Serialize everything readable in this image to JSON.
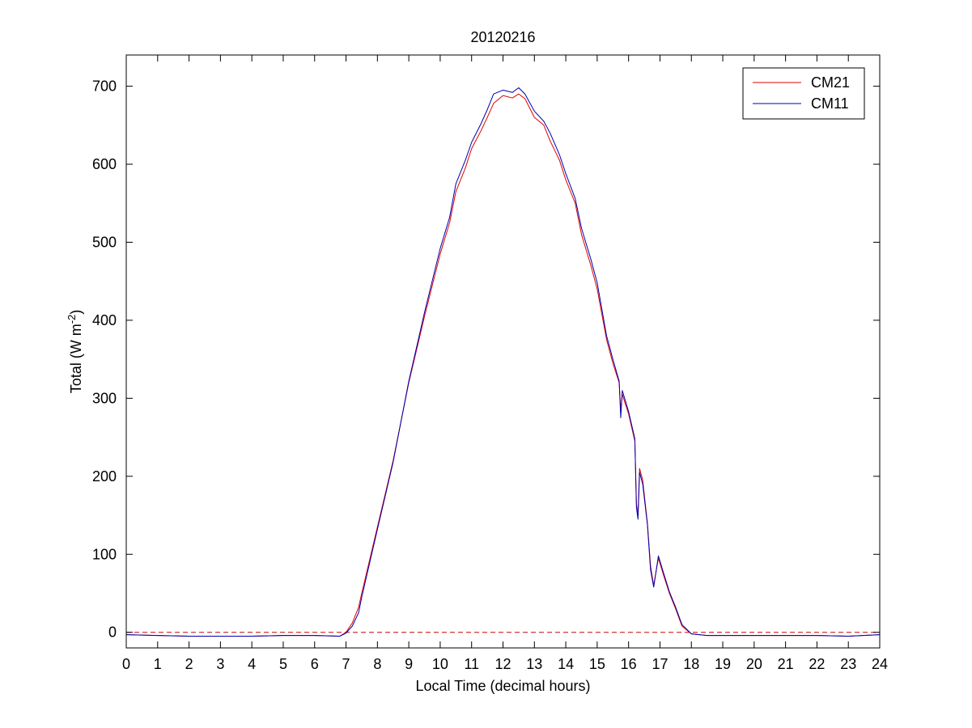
{
  "chart_data": {
    "type": "line",
    "title": "20120216",
    "xlabel": "Local Time (decimal hours)",
    "ylabel_main": "Total (W m",
    "ylabel_sup": "-2",
    "ylabel_tail": ")",
    "xlim": [
      0,
      24
    ],
    "ylim": [
      -20,
      740
    ],
    "xticks": [
      0,
      1,
      2,
      3,
      4,
      5,
      6,
      7,
      8,
      9,
      10,
      11,
      12,
      13,
      14,
      15,
      16,
      17,
      18,
      19,
      20,
      21,
      22,
      23,
      24
    ],
    "yticks": [
      0,
      100,
      200,
      300,
      400,
      500,
      600,
      700
    ],
    "grid": false,
    "legend_position": "top-right",
    "reference_line": {
      "y": 0,
      "style": "dashed",
      "color": "#cc0000"
    },
    "series": [
      {
        "name": "CM21",
        "color": "#e00000",
        "points": [
          [
            0,
            -3
          ],
          [
            1,
            -4
          ],
          [
            2,
            -5
          ],
          [
            3,
            -5
          ],
          [
            4,
            -5
          ],
          [
            5,
            -4
          ],
          [
            6,
            -4
          ],
          [
            6.8,
            -5
          ],
          [
            7.0,
            0
          ],
          [
            7.2,
            12
          ],
          [
            7.4,
            32
          ],
          [
            7.5,
            50
          ],
          [
            8,
            135
          ],
          [
            8.5,
            220
          ],
          [
            9,
            320
          ],
          [
            9.5,
            405
          ],
          [
            10,
            485
          ],
          [
            10.3,
            525
          ],
          [
            10.5,
            565
          ],
          [
            10.8,
            595
          ],
          [
            11,
            620
          ],
          [
            11.3,
            643
          ],
          [
            11.5,
            660
          ],
          [
            11.7,
            678
          ],
          [
            12,
            688
          ],
          [
            12.3,
            685
          ],
          [
            12.5,
            690
          ],
          [
            12.7,
            684
          ],
          [
            13,
            660
          ],
          [
            13.3,
            650
          ],
          [
            13.5,
            630
          ],
          [
            13.8,
            605
          ],
          [
            14,
            580
          ],
          [
            14.3,
            550
          ],
          [
            14.5,
            510
          ],
          [
            14.8,
            470
          ],
          [
            15,
            440
          ],
          [
            15.3,
            375
          ],
          [
            15.5,
            345
          ],
          [
            15.7,
            320
          ],
          [
            15.75,
            285
          ],
          [
            15.8,
            305
          ],
          [
            16,
            280
          ],
          [
            16.2,
            245
          ],
          [
            16.25,
            165
          ],
          [
            16.3,
            150
          ],
          [
            16.35,
            210
          ],
          [
            16.45,
            195
          ],
          [
            16.6,
            140
          ],
          [
            16.7,
            85
          ],
          [
            16.8,
            60
          ],
          [
            16.95,
            95
          ],
          [
            17.1,
            75
          ],
          [
            17.3,
            50
          ],
          [
            17.5,
            30
          ],
          [
            17.7,
            8
          ],
          [
            18,
            -2
          ],
          [
            18.5,
            -4
          ],
          [
            19,
            -4
          ],
          [
            20,
            -4
          ],
          [
            21,
            -4
          ],
          [
            22,
            -4
          ],
          [
            23,
            -5
          ],
          [
            24,
            -3
          ]
        ]
      },
      {
        "name": "CM11",
        "color": "#0000b0",
        "points": [
          [
            0,
            -3
          ],
          [
            1,
            -4
          ],
          [
            2,
            -5
          ],
          [
            3,
            -5
          ],
          [
            4,
            -5
          ],
          [
            5,
            -4
          ],
          [
            6,
            -4
          ],
          [
            6.8,
            -5
          ],
          [
            7.0,
            -1
          ],
          [
            7.2,
            8
          ],
          [
            7.4,
            25
          ],
          [
            7.5,
            45
          ],
          [
            8,
            132
          ],
          [
            8.5,
            218
          ],
          [
            9,
            322
          ],
          [
            9.5,
            410
          ],
          [
            10,
            492
          ],
          [
            10.3,
            532
          ],
          [
            10.5,
            575
          ],
          [
            10.8,
            605
          ],
          [
            11,
            628
          ],
          [
            11.3,
            652
          ],
          [
            11.5,
            670
          ],
          [
            11.7,
            690
          ],
          [
            12,
            695
          ],
          [
            12.3,
            692
          ],
          [
            12.5,
            698
          ],
          [
            12.7,
            690
          ],
          [
            13,
            668
          ],
          [
            13.3,
            655
          ],
          [
            13.5,
            640
          ],
          [
            13.8,
            612
          ],
          [
            14,
            588
          ],
          [
            14.3,
            556
          ],
          [
            14.5,
            518
          ],
          [
            14.8,
            478
          ],
          [
            15,
            448
          ],
          [
            15.3,
            380
          ],
          [
            15.5,
            350
          ],
          [
            15.7,
            322
          ],
          [
            15.75,
            275
          ],
          [
            15.8,
            310
          ],
          [
            16,
            283
          ],
          [
            16.2,
            248
          ],
          [
            16.25,
            160
          ],
          [
            16.3,
            145
          ],
          [
            16.35,
            205
          ],
          [
            16.45,
            190
          ],
          [
            16.6,
            138
          ],
          [
            16.7,
            80
          ],
          [
            16.8,
            58
          ],
          [
            16.95,
            98
          ],
          [
            17.1,
            78
          ],
          [
            17.3,
            52
          ],
          [
            17.5,
            32
          ],
          [
            17.7,
            10
          ],
          [
            18,
            -2
          ],
          [
            18.5,
            -4
          ],
          [
            19,
            -4
          ],
          [
            20,
            -4
          ],
          [
            21,
            -4
          ],
          [
            22,
            -4
          ],
          [
            23,
            -5
          ],
          [
            24,
            -3
          ]
        ]
      }
    ]
  }
}
